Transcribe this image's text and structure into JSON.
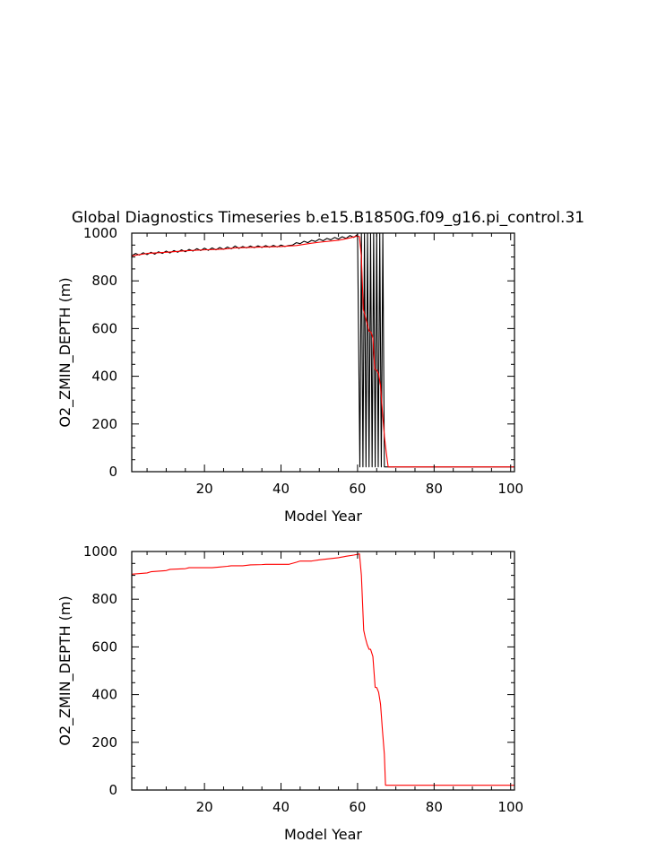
{
  "title": "Global Diagnostics Timeseries b.e15.B1850G.f09_g16.pi_control.31",
  "chart_data": [
    {
      "type": "line",
      "title": "Global Diagnostics Timeseries b.e15.B1850G.f09_g16.pi_control.31",
      "xlabel": "Model Year",
      "ylabel": "O2_ZMIN_DEPTH (m)",
      "xlim": [
        1,
        101
      ],
      "ylim": [
        0,
        1000
      ],
      "xticks": [
        20,
        40,
        60,
        80,
        100
      ],
      "yticks": [
        0,
        200,
        400,
        600,
        800,
        1000
      ],
      "grid": false,
      "series": [
        {
          "color": "#000000",
          "style": "monthly",
          "x": [
            1,
            2,
            3,
            4,
            5,
            6,
            7,
            8,
            9,
            10,
            11,
            12,
            13,
            14,
            15,
            16,
            17,
            18,
            19,
            20,
            21,
            22,
            23,
            24,
            25,
            26,
            27,
            28,
            29,
            30,
            31,
            32,
            33,
            34,
            35,
            36,
            37,
            38,
            39,
            40,
            41,
            42,
            43,
            44,
            45,
            46,
            47,
            48,
            49,
            50,
            51,
            52,
            53,
            54,
            55,
            56,
            57,
            58,
            59,
            60,
            60.6,
            61.0,
            61.4,
            61.8,
            62.2,
            62.6,
            63.0,
            63.4,
            63.8,
            64.2,
            64.6,
            65.0,
            65.4,
            65.8,
            66.2,
            66.6,
            67.0,
            68,
            101
          ],
          "y": [
            905,
            915,
            908,
            918,
            910,
            920,
            912,
            922,
            915,
            925,
            917,
            927,
            920,
            930,
            922,
            932,
            925,
            935,
            927,
            937,
            928,
            938,
            930,
            940,
            932,
            942,
            934,
            946,
            936,
            944,
            938,
            946,
            939,
            947,
            940,
            948,
            941,
            949,
            942,
            950,
            944,
            948,
            950,
            960,
            956,
            966,
            960,
            970,
            965,
            975,
            968,
            978,
            972,
            982,
            975,
            985,
            978,
            990,
            982,
            995,
            20,
            1000,
            20,
            1000,
            20,
            1000,
            20,
            1000,
            20,
            1000,
            20,
            1000,
            20,
            1000,
            20,
            1000,
            20,
            20,
            20
          ]
        },
        {
          "color": "#ff0000",
          "style": "annual",
          "x": [
            1,
            5,
            10,
            15,
            20,
            25,
            28,
            30,
            35,
            40,
            42,
            44,
            48,
            50,
            55,
            58,
            60,
            60.5,
            61,
            61.5,
            62,
            62.5,
            63,
            63.5,
            64,
            64.5,
            65,
            65.5,
            66,
            66.5,
            67,
            67.5,
            68,
            101
          ],
          "y": [
            905,
            915,
            920,
            926,
            930,
            933,
            938,
            939,
            942,
            944,
            946,
            948,
            958,
            962,
            970,
            980,
            988,
            985,
            900,
            680,
            650,
            620,
            590,
            585,
            560,
            430,
            425,
            410,
            360,
            250,
            150,
            80,
            20,
            20
          ]
        }
      ]
    },
    {
      "type": "line",
      "xlabel": "Model Year",
      "ylabel": "O2_ZMIN_DEPTH (m)",
      "xlim": [
        1,
        101
      ],
      "ylim": [
        0,
        1000
      ],
      "xticks": [
        20,
        40,
        60,
        80,
        100
      ],
      "yticks": [
        0,
        200,
        400,
        600,
        800,
        1000
      ],
      "grid": false,
      "series": [
        {
          "color": "#ff0000",
          "x": [
            1,
            5,
            6,
            10,
            11,
            15,
            16,
            22,
            24,
            26,
            27,
            30,
            32,
            35,
            36,
            40,
            42,
            44,
            45,
            48,
            50,
            55,
            57,
            59,
            60,
            60.5,
            61,
            61.6,
            62,
            62.5,
            63,
            63.4,
            64,
            64.6,
            65,
            65.5,
            66,
            66.5,
            67,
            67.3,
            101
          ],
          "y": [
            905,
            910,
            915,
            920,
            925,
            928,
            932,
            932,
            935,
            938,
            940,
            940,
            944,
            945,
            946,
            946,
            946,
            955,
            960,
            960,
            965,
            974,
            980,
            985,
            988,
            990,
            900,
            670,
            640,
            610,
            590,
            590,
            560,
            430,
            430,
            410,
            360,
            250,
            150,
            20,
            20
          ]
        }
      ]
    }
  ]
}
